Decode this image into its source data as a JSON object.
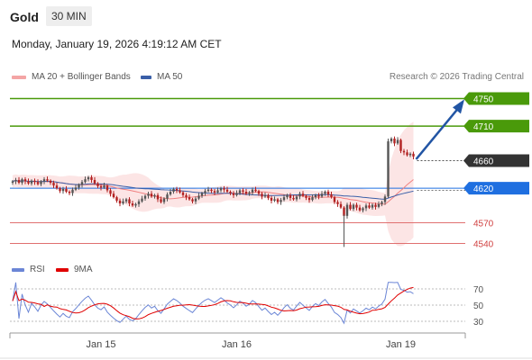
{
  "header": {
    "symbol": "Gold",
    "timeframe": "30 MIN",
    "timestamp": "Monday, January 19, 2026 4:19:12 AM CET"
  },
  "legend": {
    "ma20_label": "MA 20 + Bollinger Bands",
    "ma50_label": "MA 50",
    "credit": "Research © 2026 Trading Central"
  },
  "rsi_legend": {
    "rsi_label": "RSI",
    "ma_label": "9MA"
  },
  "colors": {
    "bullish": "#555555",
    "bearish": "#b22222",
    "ma20": "#f08080",
    "bollinger_fill": "#fbe0e0",
    "ma50": "#3a5fa8",
    "target": "#4a9a0a",
    "pivot": "#1f6fe0",
    "last": "#333333",
    "support": "#e07070",
    "arrow": "#2255a4",
    "rsi": "#6b86d6",
    "rsi_ma": "#e00000"
  },
  "chart_data": [
    {
      "type": "candlestick",
      "title": "",
      "x_labels": [
        "Jan 15",
        "Jan 16",
        "Jan 19"
      ],
      "ylim": [
        4525,
        4765
      ],
      "levels": [
        {
          "label": "4750",
          "value": 4750,
          "kind": "target"
        },
        {
          "label": "4710",
          "value": 4710,
          "kind": "target"
        },
        {
          "label": "4660",
          "value": 4660,
          "kind": "last"
        },
        {
          "label": "4620",
          "value": 4620,
          "kind": "pivot"
        },
        {
          "label": "4570",
          "value": 4570,
          "kind": "support"
        },
        {
          "label": "4540",
          "value": 4540,
          "kind": "support"
        }
      ],
      "close_values": [
        4630,
        4632,
        4628,
        4633,
        4630,
        4627,
        4631,
        4629,
        4626,
        4630,
        4633,
        4631,
        4628,
        4624,
        4620,
        4616,
        4619,
        4615,
        4613,
        4618,
        4621,
        4625,
        4629,
        4633,
        4636,
        4632,
        4627,
        4623,
        4621,
        4624,
        4617,
        4612,
        4607,
        4602,
        4598,
        4601,
        4604,
        4598,
        4595,
        4597,
        4601,
        4605,
        4609,
        4612,
        4608,
        4610,
        4604,
        4600,
        4605,
        4611,
        4615,
        4619,
        4617,
        4614,
        4610,
        4607,
        4604,
        4601,
        4605,
        4609,
        4613,
        4616,
        4618,
        4616,
        4614,
        4617,
        4620,
        4618,
        4615,
        4613,
        4610,
        4613,
        4617,
        4615,
        4612,
        4614,
        4618,
        4616,
        4612,
        4608,
        4610,
        4606,
        4602,
        4604,
        4600,
        4603,
        4607,
        4610,
        4606,
        4604,
        4608,
        4612,
        4609,
        4606,
        4603,
        4607,
        4610,
        4608,
        4612,
        4615,
        4611,
        4607,
        4600,
        4597,
        4592,
        4580,
        4596,
        4590,
        4596,
        4592,
        4588,
        4591,
        4595,
        4592,
        4596,
        4593,
        4597,
        4600,
        4608,
        4688,
        4692,
        4685,
        4690,
        4674,
        4672,
        4668,
        4670,
        4666
      ],
      "indices": {
        "x_labels_at": [
          28,
          71,
          123
        ]
      }
    },
    {
      "type": "line",
      "title": "RSI",
      "ylim": [
        20,
        80
      ],
      "y_ticks": [
        70,
        50,
        30
      ],
      "series_labels": [
        "RSI",
        "9MA"
      ]
    }
  ]
}
